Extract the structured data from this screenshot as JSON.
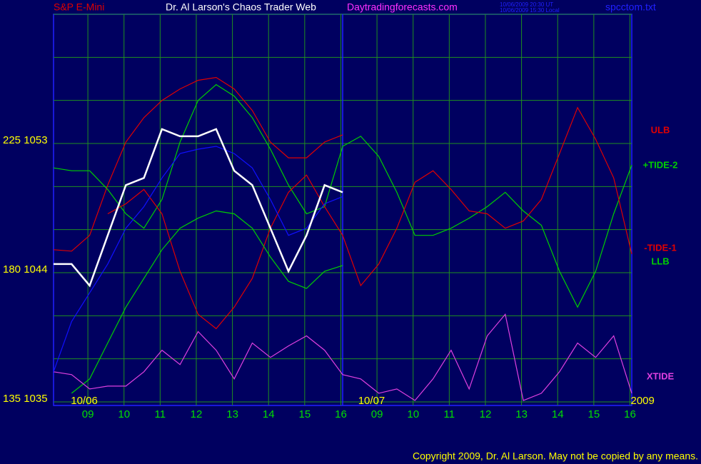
{
  "chart_data": {
    "type": "line",
    "title_left": "S&P E-Mini",
    "title": "Dr. Al Larson's Chaos Trader Web",
    "site": "Daytradingforecasts.com",
    "timestamp_ut": "10/06/2009 20:30 UT",
    "timestamp_local": "10/06/2009 15:30 Local",
    "file": "spcctom.txt",
    "copyright": "Copyright 2009, Dr. Al Larson. May not be copied by any means.",
    "day_labels": [
      {
        "value": 1.7,
        "label": "10/06"
      },
      {
        "value": 17.6,
        "label": "10/07"
      },
      {
        "value": 32.6,
        "label": "2009"
      }
    ],
    "day_divider": 16,
    "x": [
      0,
      1,
      2,
      3,
      4,
      5,
      6,
      7,
      8,
      9,
      10,
      11,
      12,
      13,
      14,
      15,
      16,
      17,
      18,
      19,
      20,
      21,
      22,
      23,
      24,
      25,
      26,
      27,
      28,
      29,
      30,
      31,
      32
    ],
    "xlim": [
      0,
      32
    ],
    "xticks": [
      {
        "value": 1.9,
        "label": "09"
      },
      {
        "value": 3.9,
        "label": "10"
      },
      {
        "value": 5.9,
        "label": "11"
      },
      {
        "value": 7.9,
        "label": "12"
      },
      {
        "value": 9.9,
        "label": "13"
      },
      {
        "value": 11.9,
        "label": "14"
      },
      {
        "value": 13.9,
        "label": "15"
      },
      {
        "value": 15.9,
        "label": "16"
      },
      {
        "value": 17.9,
        "label": "09"
      },
      {
        "value": 19.9,
        "label": "10"
      },
      {
        "value": 21.9,
        "label": "11"
      },
      {
        "value": 23.9,
        "label": "12"
      },
      {
        "value": 25.9,
        "label": "13"
      },
      {
        "value": 27.9,
        "label": "14"
      },
      {
        "value": 29.9,
        "label": "15"
      },
      {
        "value": 31.9,
        "label": "16"
      }
    ],
    "ylim": [
      1035,
      1062
    ],
    "yticks": [
      {
        "value": 1035,
        "label": "135 1035"
      },
      {
        "value": 1044,
        "label": "180 1044"
      },
      {
        "value": 1053,
        "label": "225 1053"
      }
    ],
    "ygrid": [
      1035,
      1038,
      1041,
      1044,
      1047,
      1050,
      1053,
      1056,
      1059,
      1062
    ],
    "grid": true,
    "series": [
      {
        "name": "ULB",
        "color": "#e00000",
        "values": [
          1045.6,
          1045.5,
          1046.6,
          1050.1,
          1053.1,
          1054.8,
          1056.0,
          1056.8,
          1057.4,
          1057.6,
          1056.8,
          1055.3,
          1053.1,
          1052.0,
          1052.0,
          1053.1,
          1053.6,
          null,
          null,
          null,
          null,
          null,
          null,
          null,
          null,
          null,
          null,
          null,
          null,
          null,
          null,
          null,
          null
        ]
      },
      {
        "name": "+TIDE-2",
        "color": "#00d000",
        "values": [
          1051.3,
          1051.1,
          1051.1,
          1049.8,
          1048.1,
          1047.1,
          1049.1,
          1053.1,
          1056.0,
          1057.1,
          1056.3,
          1054.8,
          1052.6,
          1050.1,
          1048.1,
          1048.6,
          1052.8,
          1053.5,
          1052.1,
          1049.6,
          1046.6,
          1046.6,
          1047.1,
          1047.8,
          1048.6,
          1049.6,
          1048.3,
          1047.3,
          1044.1,
          1041.6,
          1044.1,
          1048.1,
          1051.5
        ]
      },
      {
        "name": "-TIDE-1",
        "color": "#e00000",
        "values": [
          null,
          null,
          null,
          1048.1,
          1048.8,
          1049.8,
          1048.1,
          1044.1,
          1041.1,
          1040.1,
          1041.6,
          1043.6,
          1047.1,
          1049.6,
          1050.8,
          1048.6,
          1046.6,
          1043.1,
          1044.6,
          1047.1,
          1050.3,
          1051.1,
          1049.8,
          1048.3,
          1048.1,
          1047.1,
          1047.6,
          1049.1,
          1052.3,
          1055.5,
          1053.3,
          1050.6,
          1045.3
        ]
      },
      {
        "name": "LLB",
        "color": "#00d000",
        "values": [
          null,
          1035.6,
          1036.6,
          1039.1,
          1041.6,
          1043.6,
          1045.6,
          1047.1,
          1047.8,
          1048.3,
          1048.1,
          1047.1,
          1045.1,
          1043.4,
          1042.9,
          1044.1,
          1044.5,
          null,
          null,
          null,
          null,
          null,
          null,
          null,
          null,
          null,
          null,
          null,
          null,
          null,
          null,
          null,
          null
        ]
      },
      {
        "name": "XTIDE",
        "color": "#e040e0",
        "values": [
          1037.1,
          1036.9,
          1035.9,
          1036.1,
          1036.1,
          1037.1,
          1038.6,
          1037.6,
          1039.9,
          1038.6,
          1036.6,
          1039.1,
          1038.1,
          1038.9,
          1039.6,
          1038.6,
          1036.9,
          1036.6,
          1035.6,
          1035.9,
          1035.1,
          1036.6,
          1038.6,
          1035.9,
          1039.6,
          1041.1,
          1035.1,
          1035.6,
          1037.1,
          1039.1,
          1038.1,
          1039.6,
          1035.6
        ]
      },
      {
        "color": "#1010ff",
        "values": [
          1037.1,
          1040.6,
          1042.6,
          1044.6,
          1047.1,
          1048.6,
          1050.6,
          1052.3,
          1052.6,
          1052.8,
          1052.3,
          1051.3,
          1049.1,
          1046.6,
          1047.1,
          1048.8,
          1049.3,
          null,
          null,
          null,
          null,
          null,
          null,
          null,
          null,
          null,
          null,
          null,
          null,
          null,
          null,
          null,
          null
        ]
      },
      {
        "color": "#ffffff",
        "values": [
          1044.6,
          1044.6,
          1043.1,
          1046.6,
          1050.1,
          1050.6,
          1054.0,
          1053.5,
          1053.5,
          1054.0,
          1051.1,
          1050.1,
          1047.1,
          1044.1,
          1046.6,
          1050.1,
          1049.6,
          null,
          null,
          null,
          null,
          null,
          null,
          null,
          null,
          null,
          null,
          null,
          null,
          null,
          null,
          null,
          null
        ]
      }
    ]
  }
}
